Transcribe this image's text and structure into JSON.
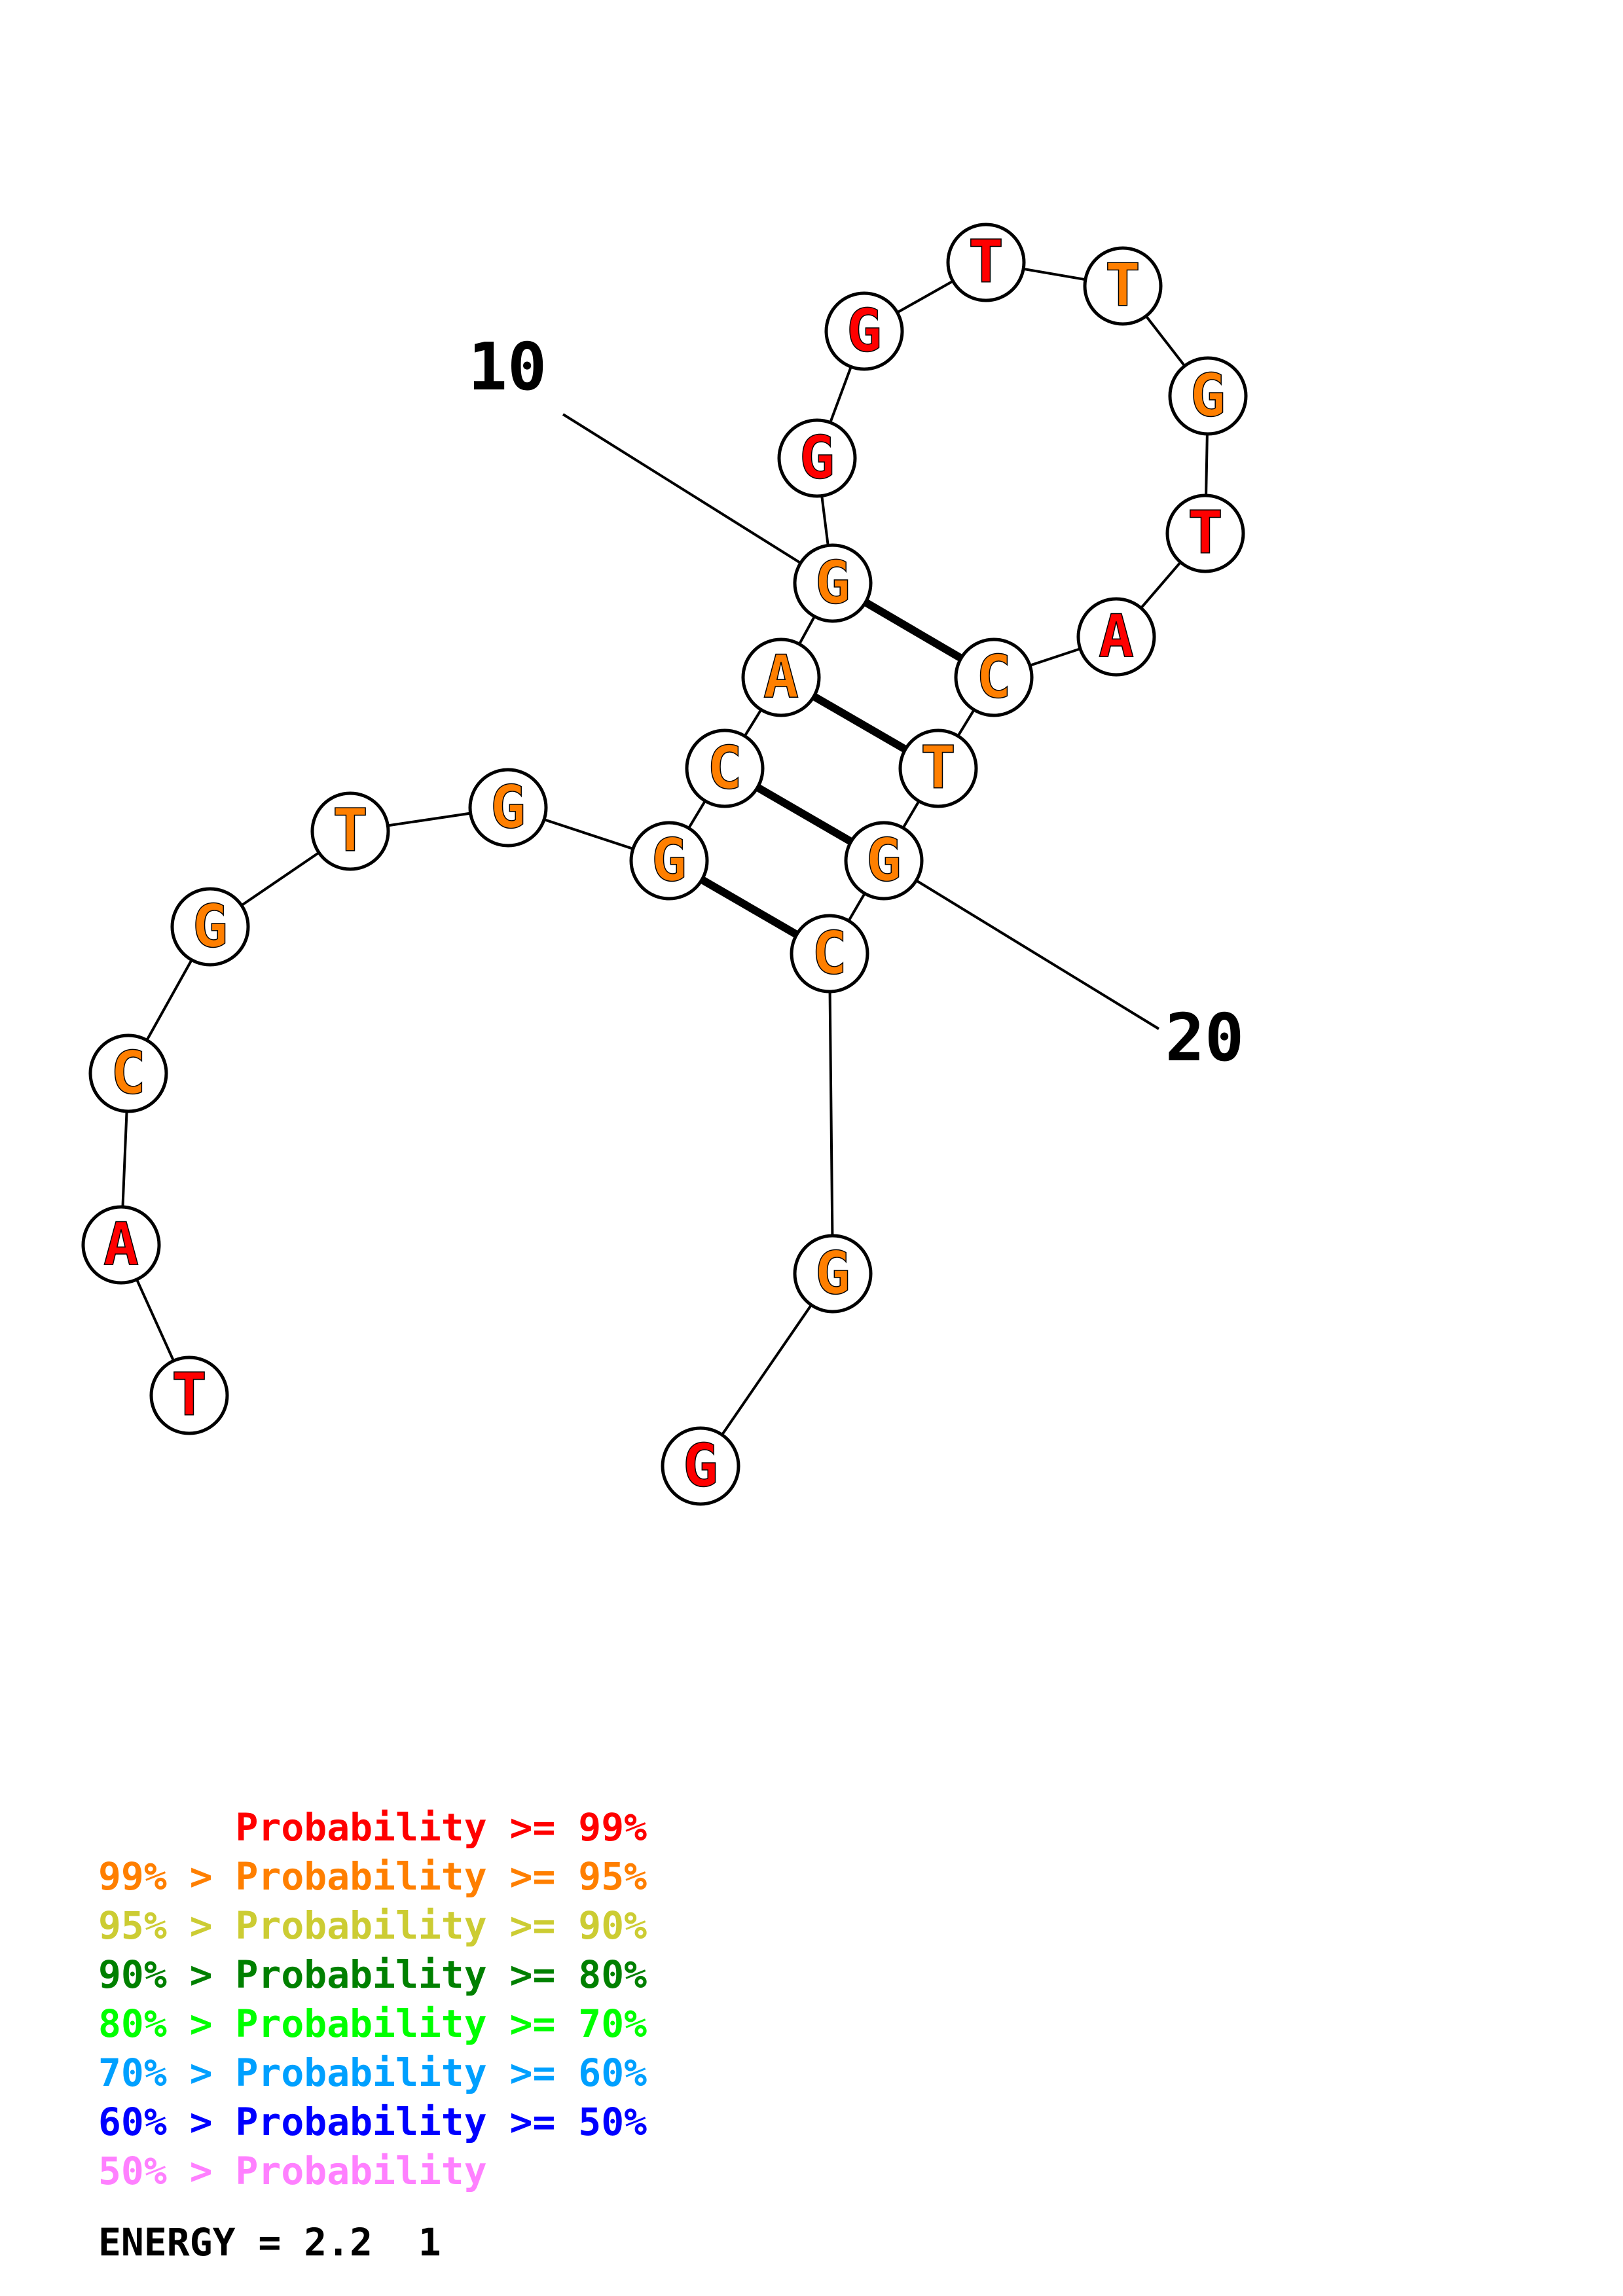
{
  "colors": {
    "p99": "#ff0000",
    "p95": "#ff7f00",
    "p90": "#cccc33",
    "p80": "#008000",
    "p70": "#00ff00",
    "p60": "#00a0ff",
    "p50": "#0000ff",
    "plow": "#ff80ff"
  },
  "nucleotides": [
    {
      "i": 1,
      "base": "T",
      "p": "p99"
    },
    {
      "i": 2,
      "base": "A",
      "p": "p99"
    },
    {
      "i": 3,
      "base": "C",
      "p": "p95"
    },
    {
      "i": 4,
      "base": "G",
      "p": "p95"
    },
    {
      "i": 5,
      "base": "T",
      "p": "p95"
    },
    {
      "i": 6,
      "base": "G",
      "p": "p95"
    },
    {
      "i": 7,
      "base": "G",
      "p": "p95"
    },
    {
      "i": 8,
      "base": "C",
      "p": "p95"
    },
    {
      "i": 9,
      "base": "A",
      "p": "p95"
    },
    {
      "i": 10,
      "base": "G",
      "p": "p95"
    },
    {
      "i": 11,
      "base": "G",
      "p": "p99"
    },
    {
      "i": 12,
      "base": "G",
      "p": "p99"
    },
    {
      "i": 13,
      "base": "T",
      "p": "p99"
    },
    {
      "i": 14,
      "base": "T",
      "p": "p95"
    },
    {
      "i": 15,
      "base": "G",
      "p": "p95"
    },
    {
      "i": 16,
      "base": "T",
      "p": "p99"
    },
    {
      "i": 17,
      "base": "A",
      "p": "p99"
    },
    {
      "i": 18,
      "base": "C",
      "p": "p95"
    },
    {
      "i": 19,
      "base": "T",
      "p": "p95"
    },
    {
      "i": 20,
      "base": "G",
      "p": "p95"
    },
    {
      "i": 21,
      "base": "C",
      "p": "p95"
    },
    {
      "i": 22,
      "base": "G",
      "p": "p95"
    },
    {
      "i": 23,
      "base": "G",
      "p": "p99"
    }
  ],
  "pairs": [
    [
      7,
      21
    ],
    [
      8,
      20
    ],
    [
      9,
      19
    ],
    [
      10,
      18
    ]
  ],
  "position_labels": [
    {
      "text": "10",
      "target": 10
    },
    {
      "text": "20",
      "target": 20
    }
  ],
  "legend": [
    {
      "text": "      Probability >= 99%",
      "p": "p99"
    },
    {
      "text": "99% > Probability >= 95%",
      "p": "p95"
    },
    {
      "text": "95% > Probability >= 90%",
      "p": "p90"
    },
    {
      "text": "90% > Probability >= 80%",
      "p": "p80"
    },
    {
      "text": "80% > Probability >= 70%",
      "p": "p70"
    },
    {
      "text": "70% > Probability >= 60%",
      "p": "p60"
    },
    {
      "text": "60% > Probability >= 50%",
      "p": "p50"
    },
    {
      "text": "50% > Probability",
      "p": "plow"
    }
  ],
  "energy": "ENERGY = 2.2  1"
}
